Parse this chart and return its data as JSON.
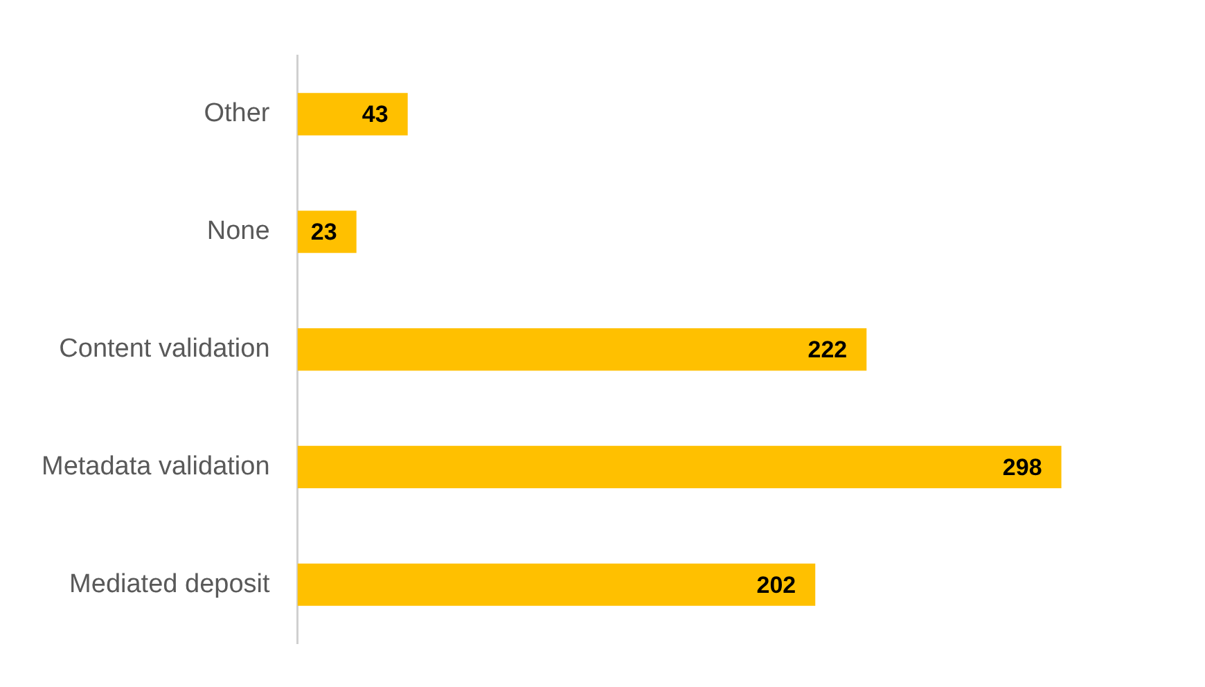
{
  "chart_data": {
    "type": "bar",
    "orientation": "horizontal",
    "categories": [
      "Other",
      "None",
      "Content validation",
      "Metadata validation",
      "Mediated deposit"
    ],
    "values": [
      43,
      23,
      222,
      298,
      202
    ],
    "color": "#ffc000",
    "data_labels": true,
    "legend": false
  }
}
